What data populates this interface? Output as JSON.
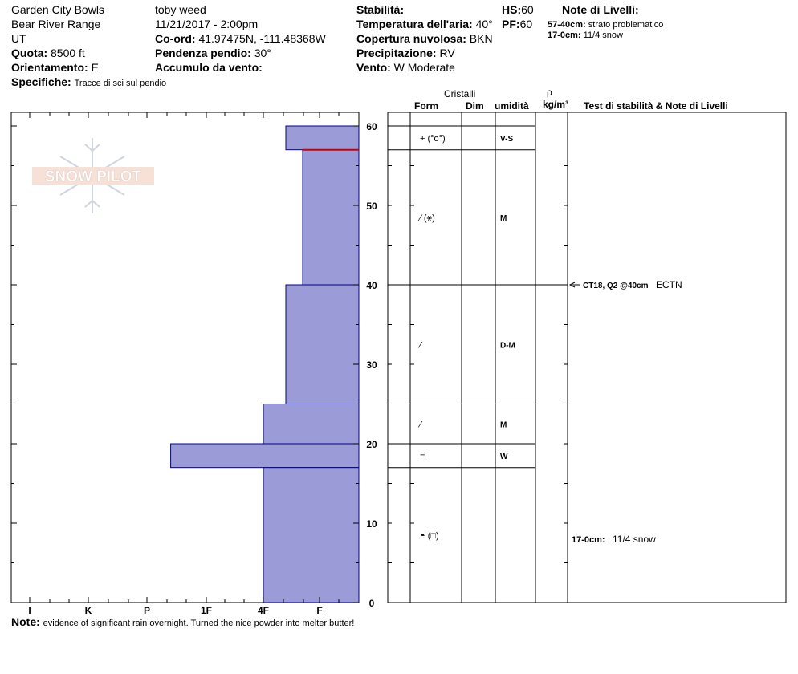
{
  "header": {
    "location": "Garden City Bowls",
    "range": "Bear River Range",
    "state": "UT",
    "elevation_label": "Quota:",
    "elevation": "8500 ft",
    "aspect_label": "Orientamento:",
    "aspect": "E",
    "specifics_label": "Specifiche:",
    "specifics": "Tracce di sci sul pendio",
    "observer": "toby weed",
    "datetime": "11/21/2017 - 2:00pm",
    "coords_label": "Co-ord:",
    "coords": "41.97475N, -111.48368W",
    "slope_label": "Pendenza pendio:",
    "slope": "30°",
    "wind_loading_label": "Accumulo da vento:",
    "wind_loading": "",
    "stability_label": "Stabilità:",
    "stability": "",
    "air_temp_label": "Temperatura dell'aria:",
    "air_temp": "40°",
    "sky_label": "Copertura nuvolosa:",
    "sky": "BKN",
    "precip_label": "Precipitazione:",
    "precip": "RV",
    "wind_label": "Vento:",
    "wind": "W Moderate",
    "hs_label": "HS:",
    "hs": "60",
    "pf_label": "PF:",
    "pf": "60",
    "layer_notes_title": "Note di Livelli:",
    "layer_notes": [
      {
        "range": "57-40cm:",
        "text": "strato problematico"
      },
      {
        "range": "17-0cm:",
        "text": "11/4 snow"
      }
    ]
  },
  "logo_text": "SNOW PILOT",
  "table_headers": {
    "crystals": "Cristalli",
    "form": "Form",
    "size": "Dim",
    "moisture": "umidità",
    "rho": "ρ",
    "density_unit": "kg/m³",
    "notes": "Test di stabilità & Note di Livelli"
  },
  "chart_data": {
    "type": "bar",
    "description_axis": "hardness profile",
    "hardness_ticks": [
      "I",
      "K",
      "P",
      "1F",
      "4F",
      "F"
    ],
    "ylim": [
      0,
      60
    ],
    "y_ticks": [
      0,
      10,
      20,
      30,
      40,
      50,
      60
    ],
    "hardness_scale_note": "F=1, 4F=2, 1F=3, P=4, K=5, I=6",
    "layers": [
      {
        "top": 60,
        "bottom": 57,
        "hardness": "F-4F",
        "hardness_value": 1.6,
        "form": "+ (°o°)",
        "moisture": "V-S"
      },
      {
        "top": 57,
        "bottom": 40,
        "hardness": "F+",
        "hardness_value": 1.3,
        "form": "⁄ (⚹)",
        "moisture": "M"
      },
      {
        "top": 40,
        "bottom": 25,
        "hardness": "4F-",
        "hardness_value": 1.6,
        "form": "⁄",
        "moisture": "D-M"
      },
      {
        "top": 25,
        "bottom": 20,
        "hardness": "4F+",
        "hardness_value": 2.0,
        "form": "⁄",
        "moisture": "M"
      },
      {
        "top": 20,
        "bottom": 17,
        "hardness": "P",
        "hardness_value": 3.6,
        "form": "=",
        "moisture": "W"
      },
      {
        "top": 17,
        "bottom": 0,
        "hardness": "4F+",
        "hardness_value": 2.0,
        "form": "◓ (□)",
        "moisture": ""
      }
    ],
    "problem_layer_depth": 57,
    "tests": [
      {
        "depth": 40,
        "label": "CT18, Q2 @40cm",
        "result": "ECTN"
      }
    ],
    "layer_note_rows": [
      {
        "depth_mid": 8,
        "range": "17-0cm:",
        "text": "11/4 snow"
      }
    ]
  },
  "note_label": "Note:",
  "note_text": "evidence of significant rain overnight.  Turned the nice powder into melter butter!",
  "colors": {
    "bar_fill": "#9b9bd8",
    "bar_stroke": "#00008b",
    "problem_line": "#cc0000",
    "grid": "#000000"
  }
}
